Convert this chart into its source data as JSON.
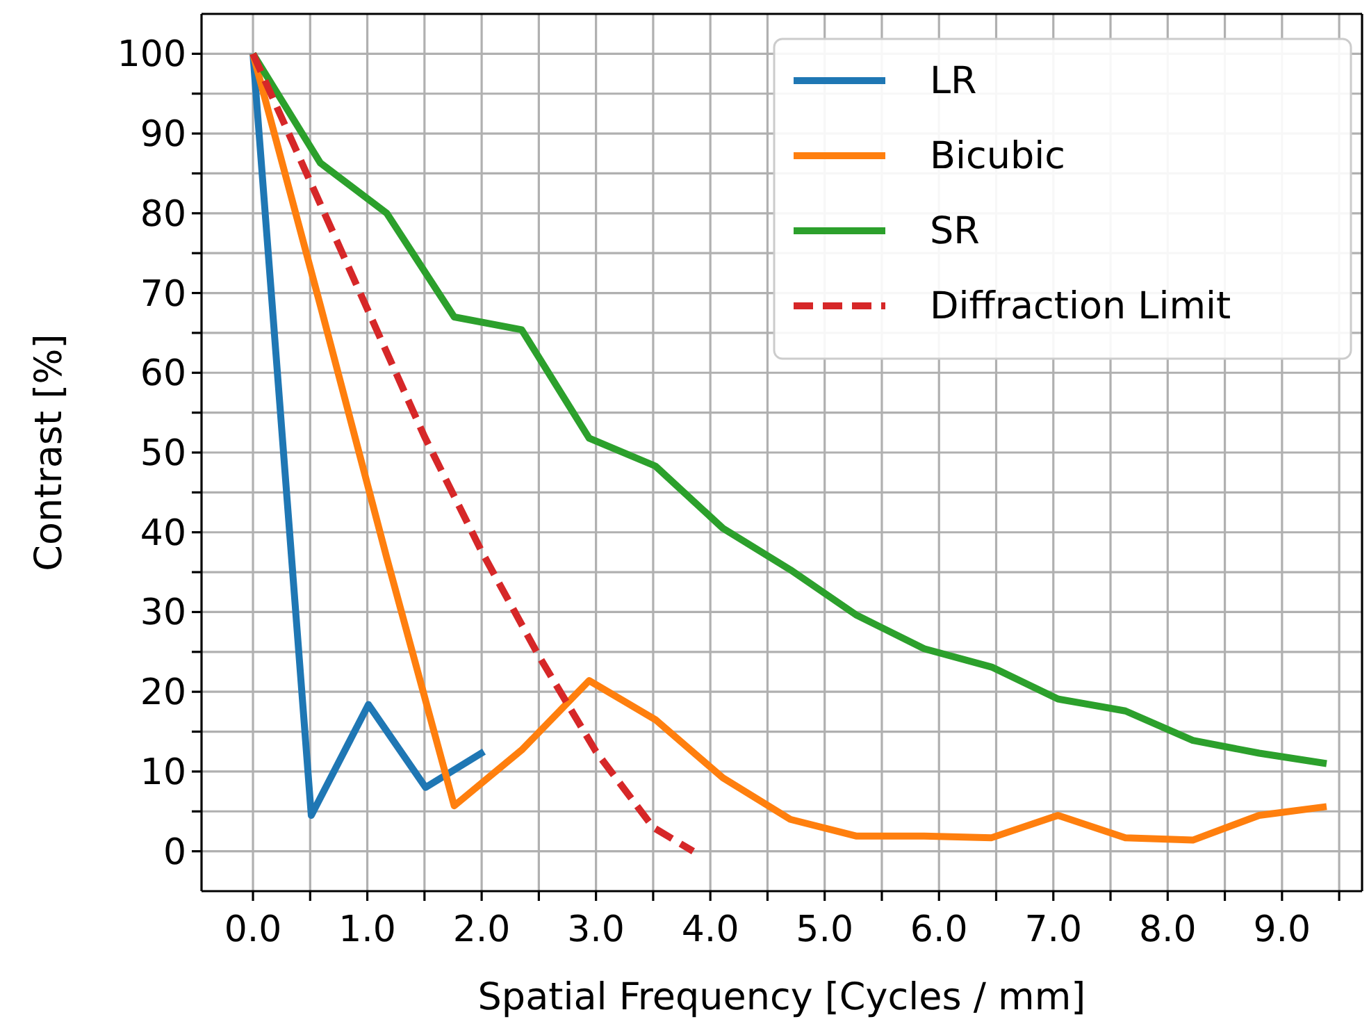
{
  "chart_data": {
    "type": "line",
    "xlabel": "Spatial Frequency [Cycles / mm]",
    "ylabel": "Contrast [%]",
    "xlim": [
      -0.45,
      9.7
    ],
    "ylim": [
      -5,
      105
    ],
    "xticks": [
      {
        "value": 0,
        "label": "0.0"
      },
      {
        "value": 0.5,
        "label": null
      },
      {
        "value": 1,
        "label": "1.0"
      },
      {
        "value": 1.5,
        "label": null
      },
      {
        "value": 2,
        "label": "2.0"
      },
      {
        "value": 2.5,
        "label": null
      },
      {
        "value": 3,
        "label": "3.0"
      },
      {
        "value": 3.5,
        "label": null
      },
      {
        "value": 4,
        "label": "4.0"
      },
      {
        "value": 4.5,
        "label": null
      },
      {
        "value": 5,
        "label": "5.0"
      },
      {
        "value": 5.5,
        "label": null
      },
      {
        "value": 6,
        "label": "6.0"
      },
      {
        "value": 6.5,
        "label": null
      },
      {
        "value": 7,
        "label": "7.0"
      },
      {
        "value": 7.5,
        "label": null
      },
      {
        "value": 8,
        "label": "8.0"
      },
      {
        "value": 8.5,
        "label": null
      },
      {
        "value": 9,
        "label": "9.0"
      },
      {
        "value": 9.5,
        "label": null
      }
    ],
    "yticks": [
      0,
      {
        "value": 5,
        "label": null
      },
      10,
      {
        "value": 15,
        "label": null
      },
      20,
      {
        "value": 25,
        "label": null
      },
      30,
      {
        "value": 35,
        "label": null
      },
      40,
      {
        "value": 45,
        "label": null
      },
      50,
      {
        "value": 55,
        "label": null
      },
      60,
      {
        "value": 65,
        "label": null
      },
      70,
      {
        "value": 75,
        "label": null
      },
      80,
      {
        "value": 85,
        "label": null
      },
      90,
      {
        "value": 95,
        "label": null
      },
      100
    ],
    "grid": true,
    "legend": "top right",
    "marker": "none",
    "series": [
      {
        "name": "LR",
        "color": "#1f77b4",
        "x": [
          0,
          0.51,
          1.01,
          1.51,
          2.02
        ],
        "values": [
          100,
          4.5,
          18.4,
          8,
          12.5
        ]
      },
      {
        "name": "Bicubic",
        "color": "#ff7f0e",
        "x": [
          0,
          0.59,
          1.17,
          1.76,
          2.35,
          2.94,
          3.52,
          4.11,
          4.7,
          5.28,
          5.87,
          6.46,
          7.04,
          7.63,
          8.22,
          8.8,
          9.39
        ],
        "values": [
          100,
          68.4,
          36.8,
          5.7,
          12.7,
          21.4,
          16.5,
          9.2,
          4.0,
          1.9,
          1.9,
          1.7,
          4.5,
          1.7,
          1.4,
          4.5,
          5.6
        ]
      },
      {
        "name": "SR",
        "color": "#2ca02c",
        "x": [
          0,
          0.59,
          1.17,
          1.76,
          2.35,
          2.94,
          3.52,
          4.11,
          4.7,
          5.28,
          5.87,
          6.46,
          7.04,
          7.63,
          8.22,
          8.8,
          9.39
        ],
        "values": [
          100,
          86.3,
          80,
          67,
          65.4,
          51.8,
          48.3,
          40.5,
          35.3,
          29.6,
          25.4,
          23.1,
          19.1,
          17.6,
          13.9,
          12.3,
          11.0
        ]
      },
      {
        "name": "Diffraction Limit",
        "color": "#d62728",
        "line_style": "dashed",
        "x": [
          0,
          0.5,
          1.0,
          1.5,
          2.0,
          2.5,
          3.0,
          3.5,
          3.85
        ],
        "values": [
          100,
          84,
          68,
          52,
          37.6,
          24.5,
          12.5,
          3,
          0
        ]
      }
    ]
  }
}
